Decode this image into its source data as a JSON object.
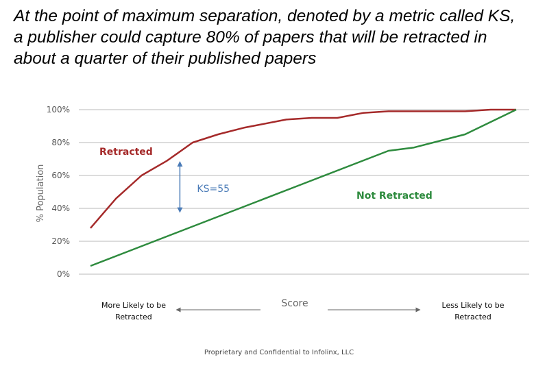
{
  "headline": {
    "line1": "At the point of maximum separation, denoted by a metric called KS,",
    "line2": "a publisher could capture 80% of papers that will be retracted in",
    "line3": "about a quarter of their published papers"
  },
  "footer": "Proprietary and Confidential to Infolinx, LLC",
  "chart_data": {
    "type": "line",
    "title": "",
    "ylabel": "% Population",
    "xlabel": "Score",
    "x_left_label": "More Likely to be Retracted",
    "x_right_label": "Less Likely to be Retracted",
    "ylim": [
      0,
      100
    ],
    "xlim": [
      0,
      100
    ],
    "yticks": [
      "0%",
      "20%",
      "40%",
      "60%",
      "80%",
      "100%"
    ],
    "ytick_values": [
      0,
      20,
      40,
      60,
      80,
      100
    ],
    "grid": true,
    "legend": "none",
    "series": [
      {
        "name": "Retracted",
        "color": "#a52a2a",
        "x": [
          0,
          6,
          12,
          18,
          24,
          30,
          36,
          40,
          46,
          52,
          58,
          64,
          70,
          76,
          82,
          88,
          94,
          100
        ],
        "y": [
          28,
          46,
          60,
          69,
          80,
          85,
          89,
          91,
          94,
          95,
          95,
          98,
          99,
          99,
          99,
          99,
          100,
          100
        ]
      },
      {
        "name": "Not Retracted",
        "color": "#2e8b3e",
        "x": [
          0,
          10,
          20,
          30,
          40,
          50,
          60,
          70,
          76,
          88,
          100
        ],
        "y": [
          5,
          15,
          25,
          35,
          45,
          55,
          65,
          75,
          77,
          85,
          100
        ]
      }
    ],
    "annotation": {
      "text": "KS=55",
      "x": 21,
      "y_from": 36,
      "y_to": 70,
      "color": "#4a7bb7"
    }
  }
}
